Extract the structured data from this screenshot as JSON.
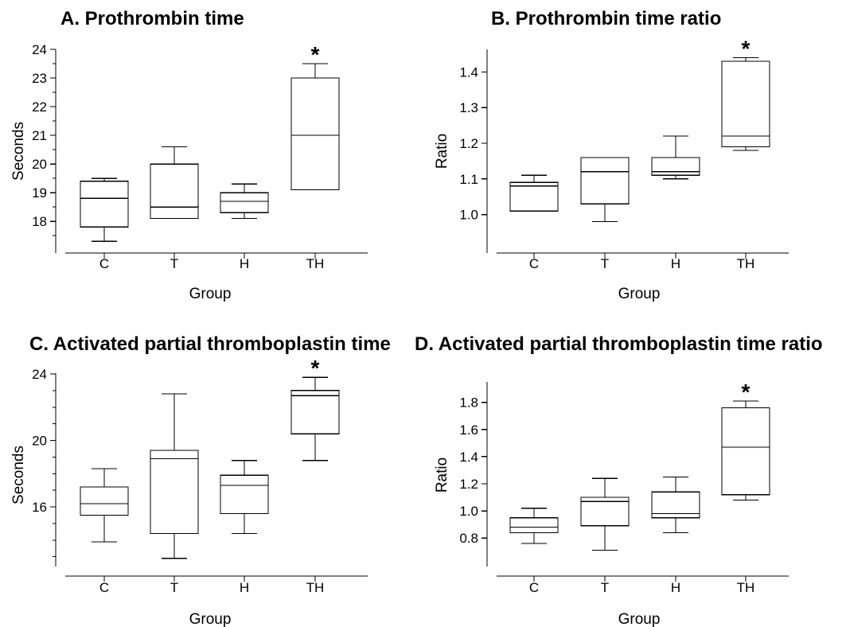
{
  "chart_data": [
    {
      "type": "box",
      "title": "A. Prothrombin time",
      "xlabel": "Group",
      "ylabel": "Seconds",
      "categories": [
        "C",
        "T",
        "H",
        "TH"
      ],
      "ylim": [
        17.2,
        24
      ],
      "yticks": [
        18,
        19,
        20,
        21,
        22,
        23,
        24
      ],
      "ytick_labels": [
        "18",
        "19",
        "20",
        "21",
        "22",
        "23",
        "24"
      ],
      "minor_ticks": true,
      "boxes": [
        {
          "min": 17.3,
          "q1": 17.8,
          "median": 18.8,
          "q3": 19.4,
          "max": 19.5
        },
        {
          "min": 18.1,
          "q1": 18.1,
          "median": 18.5,
          "q3": 20.0,
          "max": 20.6
        },
        {
          "min": 18.1,
          "q1": 18.3,
          "median": 18.7,
          "q3": 19.0,
          "max": 19.3
        },
        {
          "min": 19.1,
          "q1": 19.1,
          "median": 21.0,
          "q3": 23.0,
          "max": 23.5
        }
      ],
      "annotations": [
        {
          "category": "TH",
          "text": "*"
        }
      ]
    },
    {
      "type": "box",
      "title": "B. Prothrombin time ratio",
      "xlabel": "Group",
      "ylabel": "Ratio",
      "categories": [
        "C",
        "T",
        "H",
        "TH"
      ],
      "ylim": [
        0.95,
        1.45
      ],
      "yticks": [
        1.0,
        1.1,
        1.2,
        1.3,
        1.4
      ],
      "ytick_labels": [
        "1.0",
        "1.1",
        "1.2",
        "1.3",
        "1.4"
      ],
      "minor_ticks": false,
      "boxes": [
        {
          "min": 1.01,
          "q1": 1.01,
          "median": 1.08,
          "q3": 1.09,
          "max": 1.11
        },
        {
          "min": 0.98,
          "q1": 1.03,
          "median": 1.12,
          "q3": 1.16,
          "max": 1.16
        },
        {
          "min": 1.1,
          "q1": 1.11,
          "median": 1.12,
          "q3": 1.16,
          "max": 1.22
        },
        {
          "min": 1.18,
          "q1": 1.19,
          "median": 1.22,
          "q3": 1.43,
          "max": 1.44
        }
      ],
      "annotations": [
        {
          "category": "TH",
          "text": "*"
        }
      ]
    },
    {
      "type": "box",
      "title": "C. Activated partial thromboplastin time",
      "xlabel": "Group",
      "ylabel": "Seconds",
      "categories": [
        "C",
        "T",
        "H",
        "TH"
      ],
      "ylim": [
        12.7,
        24
      ],
      "yticks": [
        16,
        20,
        24
      ],
      "ytick_labels": [
        "16",
        "20",
        "24"
      ],
      "minor_ticks": true,
      "boxes": [
        {
          "min": 13.9,
          "q1": 15.5,
          "median": 16.2,
          "q3": 17.2,
          "max": 18.3
        },
        {
          "min": 12.9,
          "q1": 14.4,
          "median": 18.9,
          "q3": 19.4,
          "max": 22.8
        },
        {
          "min": 14.4,
          "q1": 15.6,
          "median": 17.3,
          "q3": 17.9,
          "max": 18.8
        },
        {
          "min": 18.8,
          "q1": 20.4,
          "median": 22.7,
          "q3": 23.0,
          "max": 23.8
        }
      ],
      "annotations": [
        {
          "category": "TH",
          "text": "*"
        }
      ]
    },
    {
      "type": "box",
      "title": "D. Activated partial thromboplastin time ratio",
      "xlabel": "Group",
      "ylabel": "Ratio",
      "categories": [
        "C",
        "T",
        "H",
        "TH"
      ],
      "ylim": [
        0.69,
        1.88
      ],
      "yticks": [
        0.8,
        1.0,
        1.2,
        1.4,
        1.6,
        1.8
      ],
      "ytick_labels": [
        "0.8",
        "1.0",
        "1.2",
        "1.4",
        "1.6",
        "1.8"
      ],
      "minor_ticks": false,
      "boxes": [
        {
          "min": 0.76,
          "q1": 0.84,
          "median": 0.88,
          "q3": 0.95,
          "max": 1.02
        },
        {
          "min": 0.71,
          "q1": 0.89,
          "median": 1.07,
          "q3": 1.1,
          "max": 1.24
        },
        {
          "min": 0.84,
          "q1": 0.95,
          "median": 0.98,
          "q3": 1.14,
          "max": 1.25
        },
        {
          "min": 1.08,
          "q1": 1.12,
          "median": 1.47,
          "q3": 1.76,
          "max": 1.81
        }
      ],
      "annotations": [
        {
          "category": "TH",
          "text": "*"
        }
      ]
    }
  ]
}
